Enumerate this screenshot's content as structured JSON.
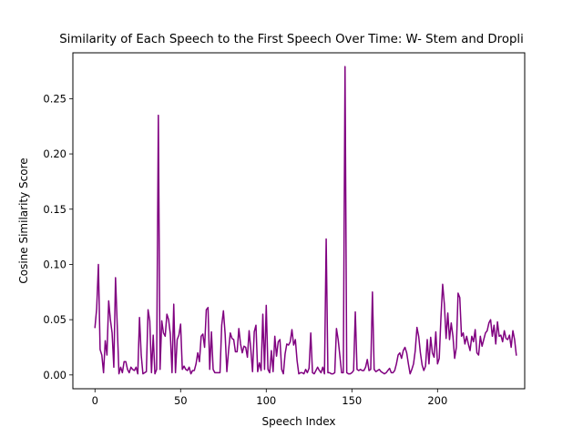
{
  "chart_data": {
    "type": "line",
    "title": "Similarity of Each Speech to the First Speech Over Time: W- Stem and Dropli",
    "xlabel": "Speech Index",
    "ylabel": "Cosine Similarity Score",
    "xlim": [
      -12.9,
      250.9
    ],
    "ylim": [
      -0.0125,
      0.2915
    ],
    "xticks": [
      0,
      50,
      100,
      150,
      200
    ],
    "yticks": [
      0.0,
      0.05,
      0.1,
      0.15,
      0.2,
      0.25
    ],
    "xtick_labels": [
      "0",
      "50",
      "100",
      "150",
      "200"
    ],
    "ytick_labels": [
      "0.00",
      "0.05",
      "0.10",
      "0.15",
      "0.20",
      "0.25"
    ],
    "grid": false,
    "legend": "none",
    "series": [
      {
        "color": "#800080",
        "x_start": 0,
        "x_step": 1,
        "values": [
          0.043,
          0.06,
          0.1,
          0.023,
          0.018,
          0.002,
          0.031,
          0.018,
          0.067,
          0.05,
          0.038,
          0.007,
          0.088,
          0.045,
          0.001,
          0.007,
          0.002,
          0.012,
          0.012,
          0.005,
          0.002,
          0.007,
          0.005,
          0.004,
          0.007,
          0.001,
          0.052,
          0.018,
          0.001,
          0.002,
          0.003,
          0.059,
          0.049,
          0.002,
          0.036,
          0.001,
          0.005,
          0.235,
          0.005,
          0.049,
          0.038,
          0.035,
          0.055,
          0.05,
          0.037,
          0.002,
          0.064,
          0.002,
          0.032,
          0.036,
          0.046,
          0.005,
          0.008,
          0.005,
          0.004,
          0.007,
          0.001,
          0.004,
          0.004,
          0.01,
          0.02,
          0.012,
          0.035,
          0.037,
          0.025,
          0.059,
          0.061,
          0.005,
          0.039,
          0.005,
          0.002,
          0.002,
          0.002,
          0.002,
          0.045,
          0.058,
          0.037,
          0.003,
          0.022,
          0.038,
          0.033,
          0.032,
          0.021,
          0.021,
          0.042,
          0.028,
          0.02,
          0.026,
          0.025,
          0.016,
          0.04,
          0.023,
          0.003,
          0.039,
          0.045,
          0.003,
          0.011,
          0.004,
          0.055,
          0.005,
          0.063,
          0.005,
          0.002,
          0.022,
          0.003,
          0.035,
          0.017,
          0.03,
          0.032,
          0.005,
          0.001,
          0.019,
          0.028,
          0.027,
          0.03,
          0.041,
          0.027,
          0.032,
          0.013,
          0.001,
          0.002,
          0.002,
          0.001,
          0.005,
          0.002,
          0.006,
          0.038,
          0.002,
          0.001,
          0.004,
          0.007,
          0.004,
          0.002,
          0.007,
          0.001,
          0.123,
          0.002,
          0.002,
          0.001,
          0.001,
          0.002,
          0.042,
          0.032,
          0.017,
          0.002,
          0.002,
          0.279,
          0.002,
          0.001,
          0.001,
          0.002,
          0.004,
          0.057,
          0.005,
          0.004,
          0.005,
          0.004,
          0.004,
          0.007,
          0.014,
          0.004,
          0.005,
          0.075,
          0.005,
          0.003,
          0.004,
          0.005,
          0.003,
          0.002,
          0.001,
          0.002,
          0.004,
          0.006,
          0.002,
          0.002,
          0.004,
          0.01,
          0.018,
          0.02,
          0.015,
          0.022,
          0.025,
          0.02,
          0.01,
          0.001,
          0.005,
          0.01,
          0.022,
          0.043,
          0.035,
          0.02,
          0.009,
          0.004,
          0.008,
          0.032,
          0.01,
          0.034,
          0.02,
          0.016,
          0.039,
          0.01,
          0.015,
          0.052,
          0.082,
          0.064,
          0.033,
          0.056,
          0.032,
          0.047,
          0.035,
          0.015,
          0.025,
          0.074,
          0.07,
          0.035,
          0.038,
          0.028,
          0.035,
          0.028,
          0.022,
          0.035,
          0.03,
          0.041,
          0.02,
          0.018,
          0.035,
          0.026,
          0.032,
          0.038,
          0.04,
          0.047,
          0.05,
          0.035,
          0.045,
          0.028,
          0.048,
          0.035,
          0.036,
          0.03,
          0.04,
          0.033,
          0.032,
          0.036,
          0.025,
          0.04,
          0.032,
          0.018
        ]
      }
    ]
  }
}
